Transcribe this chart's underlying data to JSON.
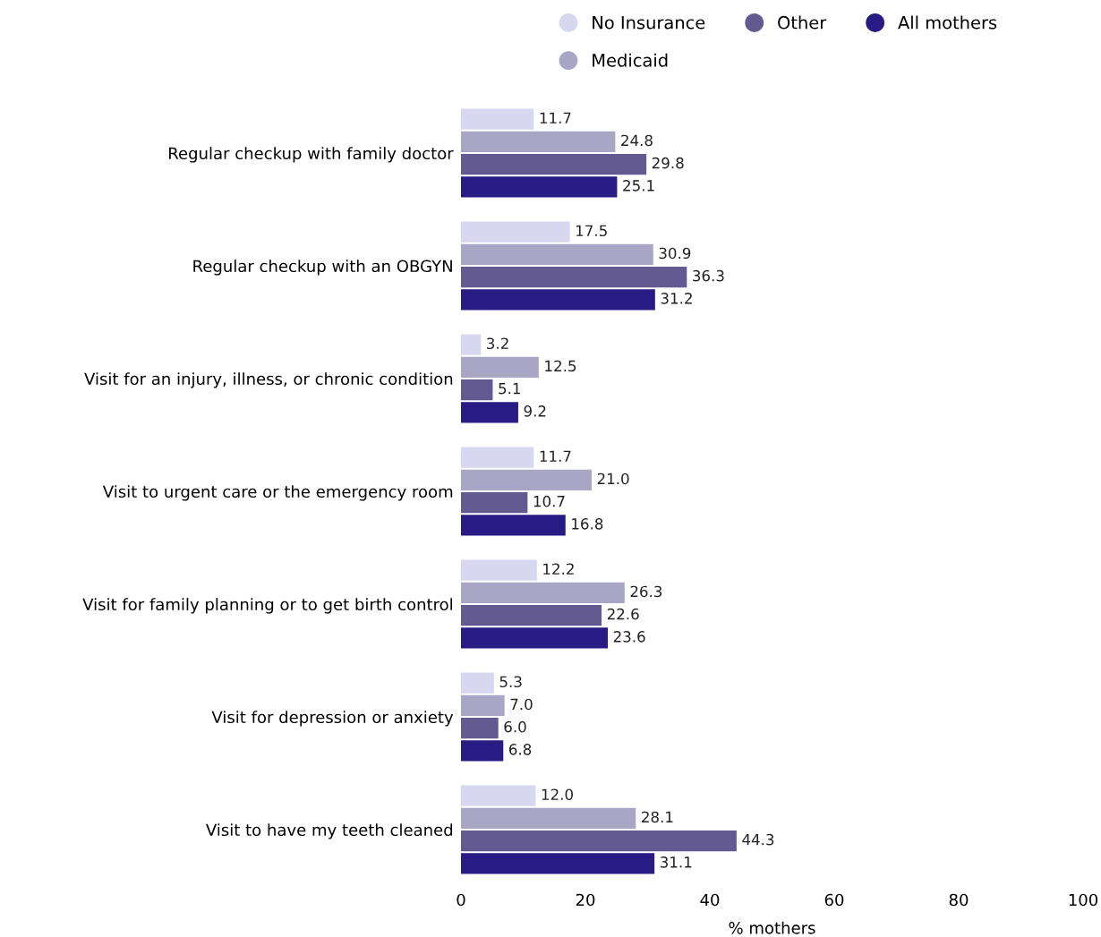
{
  "chart_data": {
    "type": "bar",
    "orientation": "horizontal",
    "xlabel": "% mothers",
    "categories": [
      "Regular checkup with family doctor",
      "Regular checkup with an OBGYN",
      "Visit for an injury, illness, or chronic condition",
      "Visit to urgent care or the emergency room",
      "Visit for family planning or to get birth control",
      "Visit for depression or anxiety",
      "Visit to have my teeth cleaned"
    ],
    "series": [
      {
        "name": "No Insurance",
        "color": "#d8d7f0",
        "values": [
          11.7,
          17.5,
          3.2,
          11.7,
          12.2,
          5.3,
          12.0
        ],
        "value_labels": [
          "11.7",
          "17.5",
          "3.2",
          "11.7",
          "12.2",
          "5.3",
          "12.0"
        ]
      },
      {
        "name": "Medicaid",
        "color": "#a8a6c4",
        "values": [
          24.8,
          30.9,
          12.5,
          21.0,
          26.3,
          7.0,
          28.1
        ],
        "value_labels": [
          "24.8",
          "30.9",
          "12.5",
          "21.0",
          "26.3",
          "7.0",
          "28.1"
        ]
      },
      {
        "name": "Other",
        "color": "#645a92",
        "values": [
          29.8,
          36.3,
          5.1,
          10.7,
          22.6,
          6.0,
          44.3
        ],
        "value_labels": [
          "29.8",
          "36.3",
          "5.1",
          "10.7",
          "22.6",
          "6.0",
          "44.3"
        ]
      },
      {
        "name": "All mothers",
        "color": "#281c84",
        "values": [
          25.1,
          31.2,
          9.2,
          16.8,
          23.6,
          6.8,
          31.1
        ],
        "value_labels": [
          "25.1",
          "31.2",
          "9.2",
          "16.8",
          "23.6",
          "6.8",
          "31.1"
        ]
      }
    ],
    "xlim": [
      0,
      100
    ],
    "xticks": [
      0,
      20,
      40,
      60,
      80,
      100
    ],
    "grid": false,
    "legend": "top right"
  }
}
